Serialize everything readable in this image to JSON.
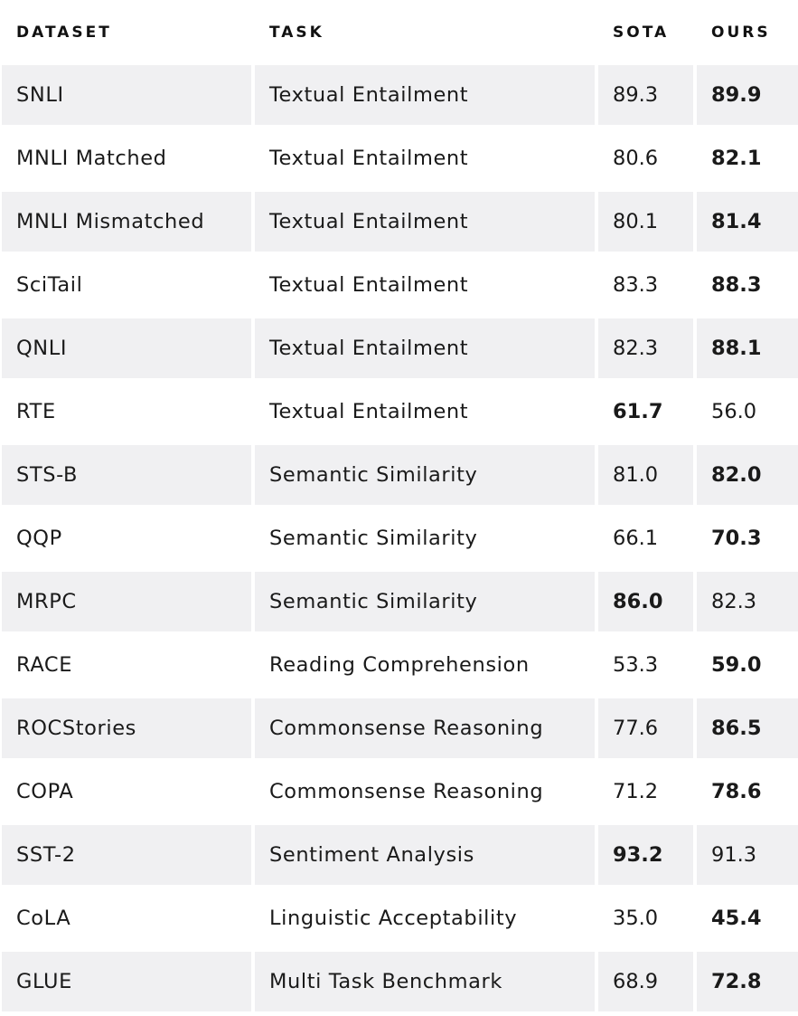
{
  "headers": {
    "dataset": "DATASET",
    "task": "TASK",
    "sota": "SOTA",
    "ours": "OURS"
  },
  "rows": [
    {
      "dataset": "SNLI",
      "task": "Textual Entailment",
      "sota": "89.3",
      "ours": "89.9",
      "best": "ours"
    },
    {
      "dataset": "MNLI Matched",
      "task": "Textual Entailment",
      "sota": "80.6",
      "ours": "82.1",
      "best": "ours"
    },
    {
      "dataset": "MNLI Mismatched",
      "task": "Textual Entailment",
      "sota": "80.1",
      "ours": "81.4",
      "best": "ours"
    },
    {
      "dataset": "SciTail",
      "task": "Textual Entailment",
      "sota": "83.3",
      "ours": "88.3",
      "best": "ours"
    },
    {
      "dataset": "QNLI",
      "task": "Textual Entailment",
      "sota": "82.3",
      "ours": "88.1",
      "best": "ours"
    },
    {
      "dataset": "RTE",
      "task": "Textual Entailment",
      "sota": "61.7",
      "ours": "56.0",
      "best": "sota"
    },
    {
      "dataset": "STS-B",
      "task": "Semantic Similarity",
      "sota": "81.0",
      "ours": "82.0",
      "best": "ours"
    },
    {
      "dataset": "QQP",
      "task": "Semantic Similarity",
      "sota": "66.1",
      "ours": "70.3",
      "best": "ours"
    },
    {
      "dataset": "MRPC",
      "task": "Semantic Similarity",
      "sota": "86.0",
      "ours": "82.3",
      "best": "sota"
    },
    {
      "dataset": "RACE",
      "task": "Reading Comprehension",
      "sota": "53.3",
      "ours": "59.0",
      "best": "ours"
    },
    {
      "dataset": "ROCStories",
      "task": "Commonsense Reasoning",
      "sota": "77.6",
      "ours": "86.5",
      "best": "ours"
    },
    {
      "dataset": "COPA",
      "task": "Commonsense Reasoning",
      "sota": "71.2",
      "ours": "78.6",
      "best": "ours"
    },
    {
      "dataset": "SST-2",
      "task": "Sentiment Analysis",
      "sota": "93.2",
      "ours": "91.3",
      "best": "sota"
    },
    {
      "dataset": "CoLA",
      "task": "Linguistic Acceptability",
      "sota": "35.0",
      "ours": "45.4",
      "best": "ours"
    },
    {
      "dataset": "GLUE",
      "task": "Multi Task Benchmark",
      "sota": "68.9",
      "ours": "72.8",
      "best": "ours"
    }
  ],
  "colors": {
    "row_fill": "#f0f0f2",
    "text": "#1a1a1a"
  }
}
